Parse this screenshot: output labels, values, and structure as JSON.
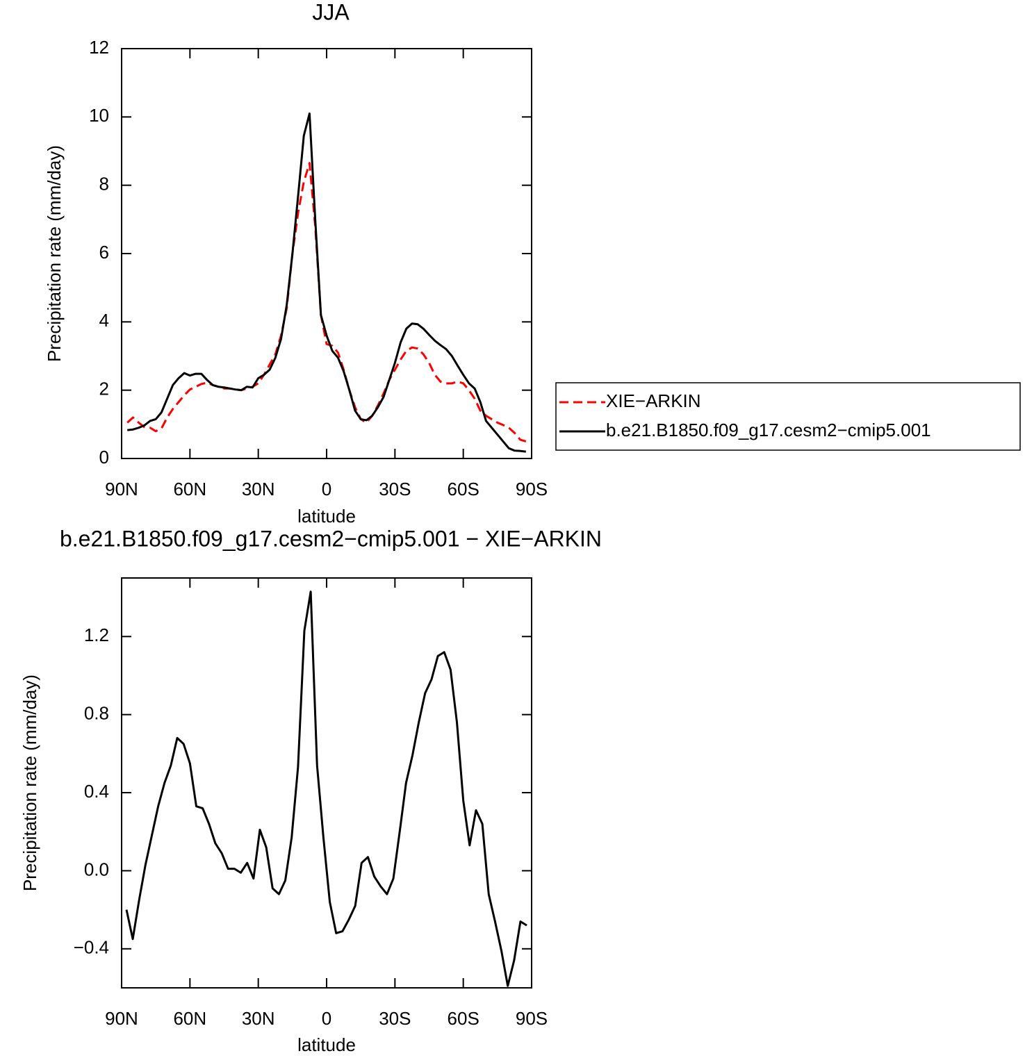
{
  "chart_data": [
    {
      "type": "line",
      "title": "JJA",
      "xlabel": "latitude",
      "ylabel": "Precipitation rate (mm/day)",
      "x": [
        87.5,
        85,
        82.5,
        80,
        77.5,
        75,
        72.5,
        70,
        67.5,
        65,
        62.5,
        60,
        57.5,
        55,
        52.5,
        50,
        47.5,
        45,
        42.5,
        40,
        37.5,
        35,
        32.5,
        30,
        27.5,
        25,
        22.5,
        20,
        17.5,
        15,
        12.5,
        10,
        7.5,
        5,
        2.5,
        0,
        -2.5,
        -5,
        -7.5,
        -10,
        -12.5,
        -15,
        -17.5,
        -20,
        -22.5,
        -25,
        -27.5,
        -30,
        -32.5,
        -35,
        -37.5,
        -40,
        -42.5,
        -45,
        -47.5,
        -50,
        -52.5,
        -55,
        -57.5,
        -60,
        -62.5,
        -65,
        -67.5,
        -70,
        -72.5,
        -75,
        -77.5,
        -80,
        -82.5,
        -85,
        -87.5
      ],
      "xlim": [
        90,
        -90
      ],
      "xticks": [
        {
          "value": 90,
          "label": "90N"
        },
        {
          "value": 60,
          "label": "60N"
        },
        {
          "value": 30,
          "label": "30N"
        },
        0,
        {
          "value": -30,
          "label": "30S"
        },
        {
          "value": -60,
          "label": "60S"
        },
        {
          "value": -90,
          "label": "90S"
        }
      ],
      "ylim": [
        0,
        12
      ],
      "yticks": [
        0,
        2,
        4,
        6,
        8,
        10,
        12
      ],
      "legend": "right",
      "series": [
        {
          "name": "XIE−ARKIN",
          "color": "#ff0000",
          "dash": true,
          "values": [
            1.05,
            1.2,
            1.05,
            0.92,
            0.9,
            0.8,
            0.88,
            1.2,
            1.45,
            1.65,
            1.85,
            2.02,
            2.1,
            2.18,
            2.22,
            2.15,
            2.1,
            2.05,
            2.05,
            2.02,
            2.0,
            2.05,
            2.1,
            2.2,
            2.45,
            2.75,
            3.05,
            3.6,
            4.4,
            6.0,
            7.2,
            8.1,
            8.65,
            6.8,
            4.2,
            3.35,
            3.3,
            3.1,
            2.6,
            2.0,
            1.5,
            1.15,
            1.05,
            1.25,
            1.55,
            1.9,
            2.3,
            2.6,
            2.9,
            3.15,
            3.25,
            3.22,
            3.05,
            2.8,
            2.45,
            2.25,
            2.2,
            2.2,
            2.25,
            2.2,
            2.0,
            1.75,
            1.4,
            1.25,
            1.15,
            1.05,
            0.98,
            0.9,
            0.75,
            0.55,
            0.5
          ]
        },
        {
          "name": "b.e21.B1850.f09_g17.cesm2−cmip5.001",
          "color": "#000000",
          "dash": false,
          "values": [
            0.83,
            0.85,
            0.9,
            0.97,
            1.1,
            1.15,
            1.35,
            1.75,
            2.15,
            2.35,
            2.5,
            2.43,
            2.48,
            2.48,
            2.3,
            2.15,
            2.1,
            2.08,
            2.05,
            2.02,
            2.0,
            2.1,
            2.08,
            2.35,
            2.45,
            2.6,
            2.95,
            3.5,
            4.5,
            6.0,
            7.7,
            9.45,
            10.1,
            7.0,
            4.2,
            3.6,
            3.15,
            2.95,
            2.55,
            2.0,
            1.4,
            1.15,
            1.12,
            1.25,
            1.5,
            1.8,
            2.3,
            2.8,
            3.4,
            3.8,
            3.95,
            3.93,
            3.8,
            3.62,
            3.45,
            3.32,
            3.2,
            3.0,
            2.72,
            2.45,
            2.2,
            2.05,
            1.65,
            1.1,
            0.9,
            0.7,
            0.5,
            0.3,
            0.23,
            0.22,
            0.2
          ]
        }
      ]
    },
    {
      "type": "line",
      "title": "b.e21.B1850.f09_g17.cesm2−cmip5.001 − XIE−ARKIN",
      "xlabel": "latitude",
      "ylabel": "Precipitation rate (mm/day)",
      "x": [
        87.86,
        85.1,
        82.31,
        79.53,
        76.74,
        73.95,
        71.16,
        68.37,
        65.58,
        62.79,
        60.0,
        57.21,
        54.42,
        51.63,
        48.84,
        46.05,
        43.25,
        40.46,
        37.67,
        34.88,
        32.09,
        29.3,
        26.51,
        23.72,
        20.93,
        18.14,
        15.35,
        12.56,
        9.77,
        6.98,
        4.19,
        1.4,
        -1.4,
        -4.19,
        -6.98,
        -9.77,
        -12.56,
        -15.35,
        -18.14,
        -20.93,
        -23.72,
        -26.51,
        -29.3,
        -32.09,
        -34.88,
        -37.67,
        -40.46,
        -43.25,
        -46.05,
        -48.84,
        -51.63,
        -54.42,
        -57.21,
        -60.0,
        -62.79,
        -65.58,
        -68.37,
        -71.16,
        -73.95,
        -76.74,
        -79.53,
        -82.31,
        -85.1,
        -87.86
      ],
      "xlim": [
        90,
        -90
      ],
      "xticks": [
        {
          "value": 90,
          "label": "90N"
        },
        {
          "value": 60,
          "label": "60N"
        },
        {
          "value": 30,
          "label": "30N"
        },
        0,
        {
          "value": -30,
          "label": "30S"
        },
        {
          "value": -60,
          "label": "60S"
        },
        {
          "value": -90,
          "label": "90S"
        }
      ],
      "ylim": [
        -0.6,
        1.5
      ],
      "yticks": [
        {
          "value": -0.4,
          "label": "−0.4"
        },
        {
          "value": 0,
          "label": "0.0"
        },
        0.4,
        0.8,
        1.2
      ],
      "series": [
        {
          "color": "#000000",
          "dash": false,
          "values": [
            -0.2,
            -0.35,
            -0.15,
            0.03,
            0.18,
            0.33,
            0.45,
            0.54,
            0.68,
            0.65,
            0.55,
            0.33,
            0.32,
            0.24,
            0.14,
            0.09,
            0.01,
            0.01,
            -0.01,
            0.04,
            -0.04,
            0.21,
            0.12,
            -0.09,
            -0.12,
            -0.05,
            0.17,
            0.53,
            1.23,
            1.43,
            0.54,
            0.17,
            -0.16,
            -0.32,
            -0.31,
            -0.25,
            -0.18,
            0.04,
            0.07,
            -0.03,
            -0.08,
            -0.12,
            -0.04,
            0.2,
            0.45,
            0.59,
            0.76,
            0.91,
            0.98,
            1.1,
            1.12,
            1.03,
            0.76,
            0.36,
            0.13,
            0.31,
            0.24,
            -0.12,
            -0.26,
            -0.41,
            -0.59,
            -0.46,
            -0.26,
            -0.28
          ]
        }
      ]
    }
  ]
}
